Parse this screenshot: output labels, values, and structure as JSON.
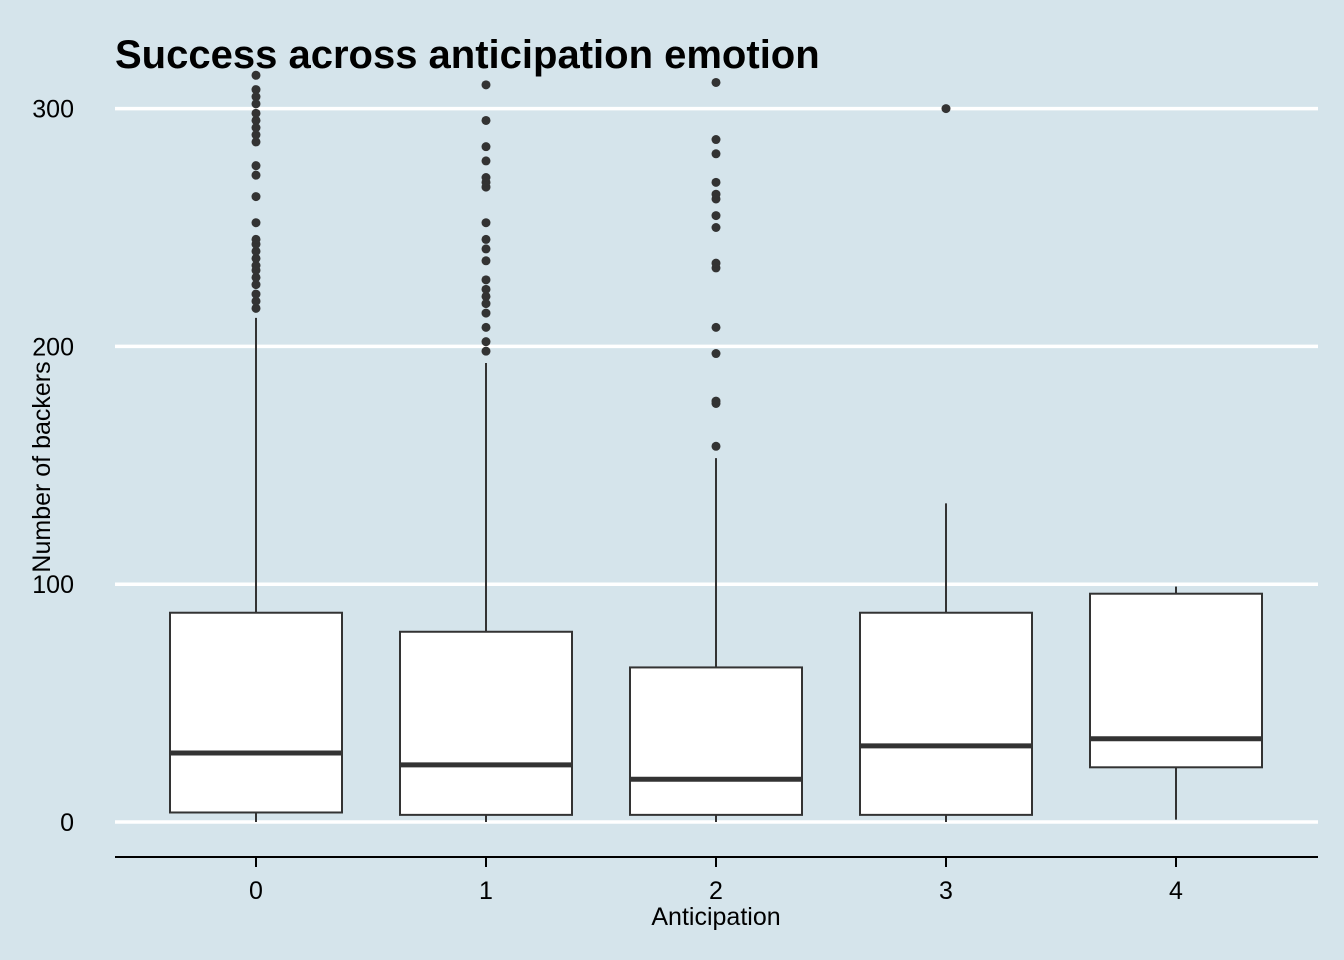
{
  "chart_data": {
    "type": "box",
    "title": "Success across anticipation emotion",
    "xlabel": "Anticipation",
    "ylabel": "Number of backers",
    "categories": [
      "0",
      "1",
      "2",
      "3",
      "4"
    ],
    "ylim": [
      -14,
      314
    ],
    "yticks": [
      0,
      100,
      200,
      300
    ],
    "ytick_labels": [
      "0",
      "100",
      "200",
      "300"
    ],
    "grid": "horizontal major",
    "legend": "none",
    "colors": {
      "background": "#d5e4eb",
      "box_fill": "#ffffff",
      "line": "#333333",
      "grid": "#ffffff"
    },
    "boxes": [
      {
        "category": "0",
        "whisker_low": 0,
        "q1": 4,
        "median": 29,
        "q3": 88,
        "whisker_high": 212,
        "outliers": [
          216,
          219,
          222,
          226,
          229,
          232,
          234,
          237,
          240,
          243,
          245,
          252,
          263,
          272,
          276,
          286,
          289,
          292,
          295,
          298,
          302,
          305,
          308,
          314
        ]
      },
      {
        "category": "1",
        "whisker_low": 0,
        "q1": 3,
        "median": 24,
        "q3": 80,
        "whisker_high": 193,
        "outliers": [
          198,
          202,
          208,
          214,
          218,
          221,
          224,
          228,
          236,
          241,
          245,
          252,
          267,
          269,
          271,
          278,
          284,
          295,
          310
        ]
      },
      {
        "category": "2",
        "whisker_low": 0,
        "q1": 3,
        "median": 18,
        "q3": 65,
        "whisker_high": 153,
        "outliers": [
          158,
          176,
          177,
          197,
          208,
          233,
          235,
          250,
          255,
          262,
          264,
          269,
          281,
          287,
          311
        ]
      },
      {
        "category": "3",
        "whisker_low": 0,
        "q1": 3,
        "median": 32,
        "q3": 88,
        "whisker_high": 134,
        "outliers": [
          300
        ]
      },
      {
        "category": "4",
        "whisker_low": 1,
        "q1": 23,
        "median": 35,
        "q3": 96,
        "whisker_high": 99,
        "outliers": []
      }
    ]
  }
}
